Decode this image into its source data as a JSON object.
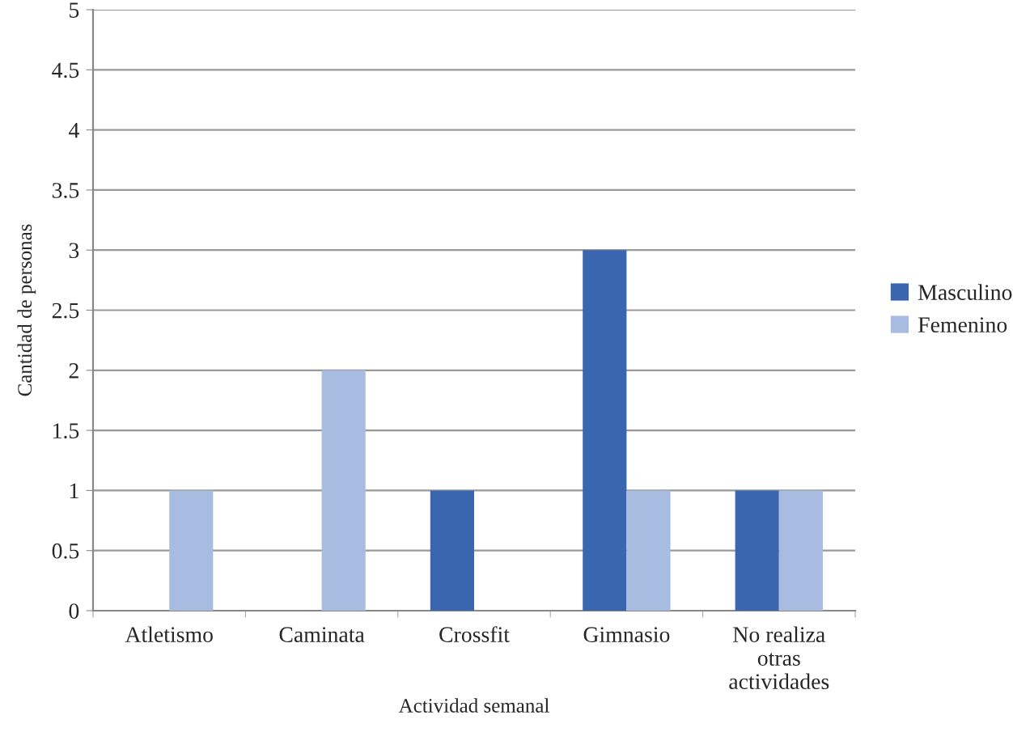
{
  "chart_data": {
    "type": "bar",
    "xlabel": "Actividad semanal",
    "ylabel": "Cantidad de personas",
    "categories": [
      "Atletismo",
      "Caminata",
      "Crossfit",
      "Gimnasio",
      "No realiza\notras\nactividades"
    ],
    "series": [
      {
        "name": "Masculino",
        "color": "#3a66b0",
        "values": [
          0,
          0,
          1,
          3,
          1
        ]
      },
      {
        "name": "Femenino",
        "color": "#a8bce2",
        "values": [
          1,
          2,
          0,
          1,
          1
        ]
      }
    ],
    "ylim": [
      0,
      5
    ],
    "yticks": [
      0,
      0.5,
      1,
      1.5,
      2,
      2.5,
      3,
      3.5,
      4,
      4.5,
      5
    ],
    "grid": "y",
    "legend": "right"
  }
}
